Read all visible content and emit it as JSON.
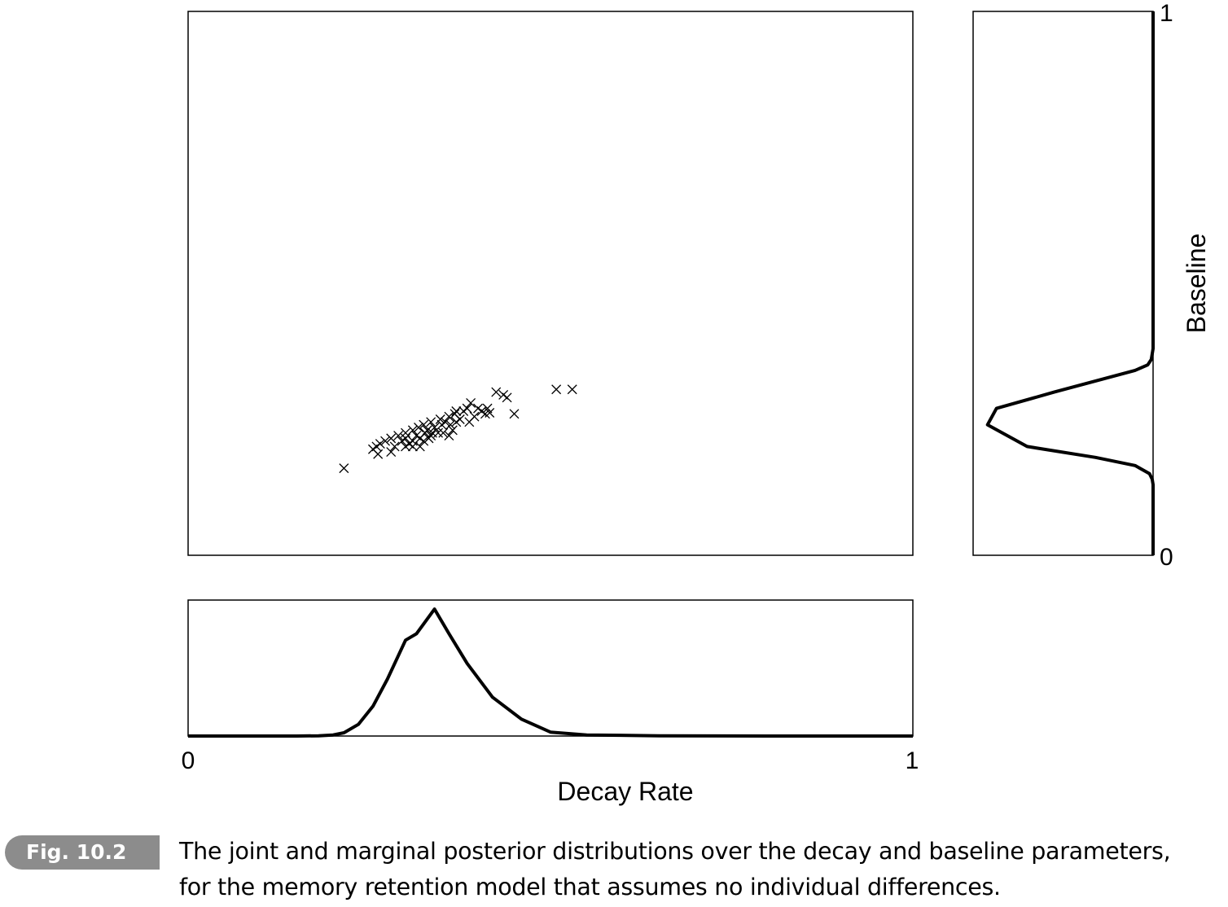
{
  "chart_data": [
    {
      "type": "scatter",
      "panel": "joint",
      "marker": "x",
      "xlim": [
        0,
        1
      ],
      "ylim": [
        0,
        1
      ],
      "points": [
        [
          0.215,
          0.16
        ],
        [
          0.255,
          0.195
        ],
        [
          0.26,
          0.2
        ],
        [
          0.265,
          0.205
        ],
        [
          0.262,
          0.186
        ],
        [
          0.272,
          0.21
        ],
        [
          0.28,
          0.215
        ],
        [
          0.285,
          0.2
        ],
        [
          0.29,
          0.22
        ],
        [
          0.295,
          0.21
        ],
        [
          0.3,
          0.225
        ],
        [
          0.3,
          0.2
        ],
        [
          0.305,
          0.205
        ],
        [
          0.31,
          0.23
        ],
        [
          0.31,
          0.21
        ],
        [
          0.315,
          0.22
        ],
        [
          0.318,
          0.235
        ],
        [
          0.32,
          0.215
        ],
        [
          0.32,
          0.2
        ],
        [
          0.325,
          0.24
        ],
        [
          0.327,
          0.225
        ],
        [
          0.33,
          0.23
        ],
        [
          0.332,
          0.215
        ],
        [
          0.335,
          0.245
        ],
        [
          0.337,
          0.225
        ],
        [
          0.34,
          0.235
        ],
        [
          0.345,
          0.225
        ],
        [
          0.348,
          0.25
        ],
        [
          0.35,
          0.24
        ],
        [
          0.352,
          0.225
        ],
        [
          0.355,
          0.245
        ],
        [
          0.36,
          0.255
        ],
        [
          0.362,
          0.24
        ],
        [
          0.365,
          0.23
        ],
        [
          0.368,
          0.26
        ],
        [
          0.37,
          0.245
        ],
        [
          0.375,
          0.25
        ],
        [
          0.38,
          0.265
        ],
        [
          0.385,
          0.27
        ],
        [
          0.39,
          0.28
        ],
        [
          0.388,
          0.245
        ],
        [
          0.395,
          0.255
        ],
        [
          0.405,
          0.265
        ],
        [
          0.41,
          0.26
        ],
        [
          0.413,
          0.27
        ],
        [
          0.416,
          0.262
        ],
        [
          0.425,
          0.3
        ],
        [
          0.44,
          0.29
        ],
        [
          0.45,
          0.26
        ],
        [
          0.508,
          0.305
        ],
        [
          0.53,
          0.305
        ],
        [
          0.28,
          0.19
        ],
        [
          0.31,
          0.2
        ],
        [
          0.335,
          0.22
        ],
        [
          0.36,
          0.22
        ],
        [
          0.3,
          0.215
        ],
        [
          0.325,
          0.21
        ],
        [
          0.37,
          0.265
        ],
        [
          0.4,
          0.27
        ],
        [
          0.435,
          0.295
        ]
      ]
    },
    {
      "type": "line",
      "panel": "marginal-decay",
      "xlabel": "Decay Rate",
      "xlim": [
        0,
        1
      ],
      "x_ticks": [
        "0",
        "1"
      ],
      "x": [
        0,
        0.15,
        0.18,
        0.2,
        0.215,
        0.235,
        0.255,
        0.275,
        0.3,
        0.315,
        0.34,
        0.36,
        0.385,
        0.42,
        0.46,
        0.5,
        0.55,
        0.65,
        0.8,
        1
      ],
      "y": [
        0,
        0,
        0.002,
        0.008,
        0.025,
        0.09,
        0.23,
        0.44,
        0.74,
        0.79,
        0.98,
        0.79,
        0.56,
        0.3,
        0.13,
        0.03,
        0.008,
        0.002,
        0,
        0
      ],
      "ylim": [
        0,
        1.05
      ]
    },
    {
      "type": "line",
      "panel": "marginal-baseline",
      "ylabel": "Baseline",
      "ylim": [
        0,
        1
      ],
      "y_ticks": [
        "0",
        "1"
      ],
      "y": [
        0,
        0.13,
        0.14,
        0.15,
        0.165,
        0.18,
        0.2,
        0.24,
        0.27,
        0.3,
        0.34,
        0.35,
        0.36,
        0.38,
        1
      ],
      "x": [
        0,
        0,
        0.005,
        0.02,
        0.1,
        0.32,
        0.7,
        0.92,
        0.87,
        0.55,
        0.1,
        0.03,
        0.01,
        0,
        0
      ],
      "xlim": [
        0,
        1
      ]
    }
  ],
  "caption": {
    "badge": "Fig. 10.2",
    "line1": "The joint and marginal posterior distributions over the decay and baseline parameters,",
    "line2": "for the memory retention model that assumes no individual differences."
  }
}
